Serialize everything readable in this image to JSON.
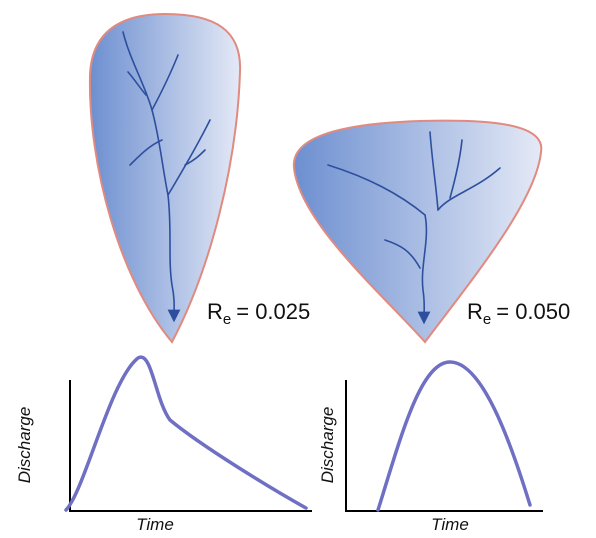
{
  "basins": [
    {
      "label": {
        "symbol": "R",
        "subscript": "e",
        "value": "= 0.025"
      },
      "hydrograph": {
        "y_label": "Discharge",
        "x_label": "Time"
      }
    },
    {
      "label": {
        "symbol": "R",
        "subscript": "e",
        "value": "= 0.050"
      },
      "hydrograph": {
        "y_label": "Discharge",
        "x_label": "Time"
      }
    }
  ]
}
